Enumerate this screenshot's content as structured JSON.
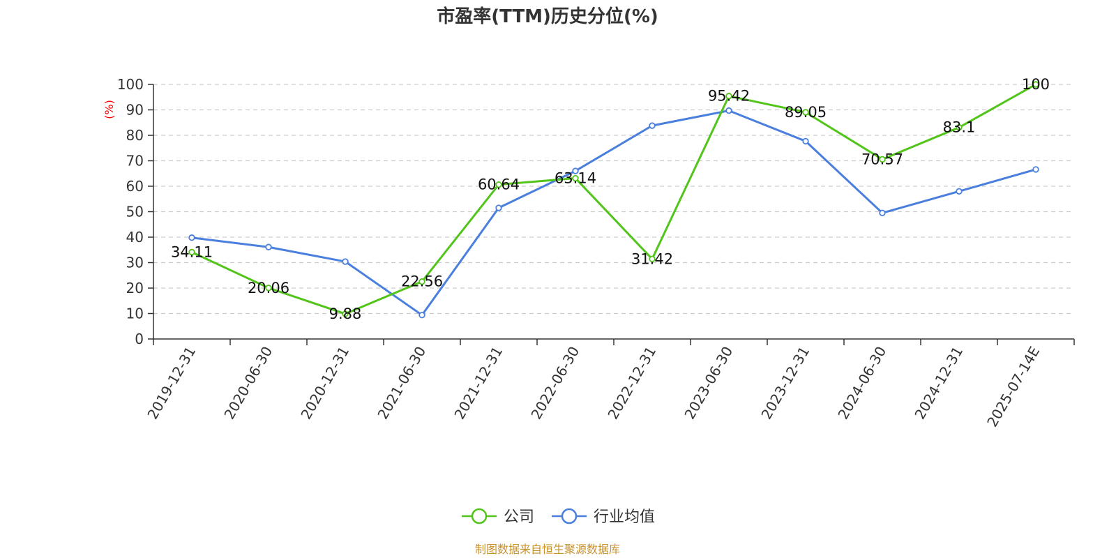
{
  "chart_data": {
    "type": "line",
    "title": "市盈率(TTM)历史分位(%)",
    "ylabel": "(%)",
    "xlabel": "",
    "ylim": [
      0,
      100
    ],
    "yticks": [
      0,
      10,
      20,
      30,
      40,
      50,
      60,
      70,
      80,
      90,
      100
    ],
    "categories": [
      "2019-12-31",
      "2020-06-30",
      "2020-12-31",
      "2021-06-30",
      "2021-12-31",
      "2022-06-30",
      "2022-12-31",
      "2023-06-30",
      "2023-12-31",
      "2024-06-30",
      "2024-12-31",
      "2025-07-14E"
    ],
    "grid": "horizontal dashed",
    "legend_position": "bottom-center",
    "series": [
      {
        "name": "公司",
        "color": "#52c41a",
        "values": [
          34.11,
          20.06,
          9.88,
          22.56,
          60.64,
          63.14,
          31.42,
          95.42,
          89.05,
          70.57,
          83.1,
          100
        ],
        "labels": [
          "34.11",
          "20.06",
          "9.88",
          "22.56",
          "60.64",
          "63.14",
          "31.42",
          "95.42",
          "89.05",
          "70.57",
          "83.1",
          "100"
        ]
      },
      {
        "name": "行业均值",
        "color": "#4a7fdd",
        "values": [
          39.8,
          36.1,
          30.4,
          9.4,
          51.5,
          66.0,
          83.8,
          89.7,
          77.7,
          49.5,
          58.0,
          66.6
        ]
      }
    ],
    "source": "制图数据来自恒生聚源数据库"
  }
}
